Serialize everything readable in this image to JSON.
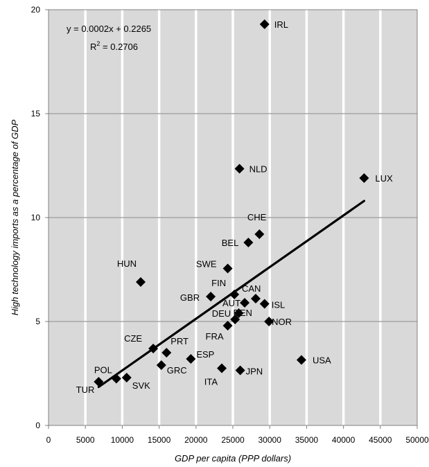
{
  "chart_data": {
    "type": "scatter",
    "title": "",
    "xlabel": "GDP per capita (PPP dollars)",
    "ylabel": "High technology imports as a percentage of GDP",
    "xlim": [
      0,
      50000
    ],
    "ylim": [
      0,
      20
    ],
    "x_ticks": [
      "0",
      "5000",
      "10000",
      "15000",
      "20000",
      "25000",
      "30000",
      "35000",
      "40000",
      "45000",
      "50000"
    ],
    "y_ticks": [
      "0",
      "5",
      "10",
      "15",
      "20"
    ],
    "grid": {
      "vertical": true,
      "horizontal": true
    },
    "background_color": "#d9d9d9",
    "grid_color": "#ffffff",
    "hgrid_color": "#a6a6a6",
    "marker_color": "#000000",
    "marker": "diamond",
    "points": [
      {
        "label": "TUR",
        "x": 6800,
        "y": 2.1
      },
      {
        "label": "POL",
        "x": 9200,
        "y": 2.25
      },
      {
        "label": "SVK",
        "x": 10600,
        "y": 2.3
      },
      {
        "label": "HUN",
        "x": 12500,
        "y": 6.9
      },
      {
        "label": "CZE",
        "x": 14200,
        "y": 3.7
      },
      {
        "label": "GRC",
        "x": 15300,
        "y": 2.9
      },
      {
        "label": "PRT",
        "x": 16000,
        "y": 3.5
      },
      {
        "label": "ESP",
        "x": 19300,
        "y": 3.2
      },
      {
        "label": "GBR",
        "x": 22000,
        "y": 6.2
      },
      {
        "label": "ITA",
        "x": 23500,
        "y": 2.75
      },
      {
        "label": "FRA",
        "x": 24300,
        "y": 4.8
      },
      {
        "label": "SWE",
        "x": 24300,
        "y": 7.55
      },
      {
        "label": "FIN",
        "x": 25200,
        "y": 6.3
      },
      {
        "label": "DEU",
        "x": 25300,
        "y": 5.1
      },
      {
        "label": "DEN",
        "x": 25800,
        "y": 5.4
      },
      {
        "label": "NLD",
        "x": 25900,
        "y": 12.35
      },
      {
        "label": "JPN",
        "x": 26000,
        "y": 2.65
      },
      {
        "label": "AUT",
        "x": 26600,
        "y": 5.9
      },
      {
        "label": "BEL",
        "x": 27100,
        "y": 8.8
      },
      {
        "label": "CAN",
        "x": 28100,
        "y": 6.1
      },
      {
        "label": "CHE",
        "x": 28600,
        "y": 9.2
      },
      {
        "label": "IRL",
        "x": 29300,
        "y": 19.3
      },
      {
        "label": "ISL",
        "x": 29300,
        "y": 5.85
      },
      {
        "label": "NOR",
        "x": 29900,
        "y": 5.0
      },
      {
        "label": "USA",
        "x": 34300,
        "y": 3.15
      },
      {
        "label": "LUX",
        "x": 42800,
        "y": 11.9
      }
    ],
    "trendline": {
      "x": [
        6800,
        42800
      ],
      "y": [
        1.85,
        10.8
      ],
      "equation": "y = 0.0002x + 0.2265",
      "r2_prefix": "R",
      "r2_sup": "2",
      "r2_value": " = 0.2706"
    }
  }
}
